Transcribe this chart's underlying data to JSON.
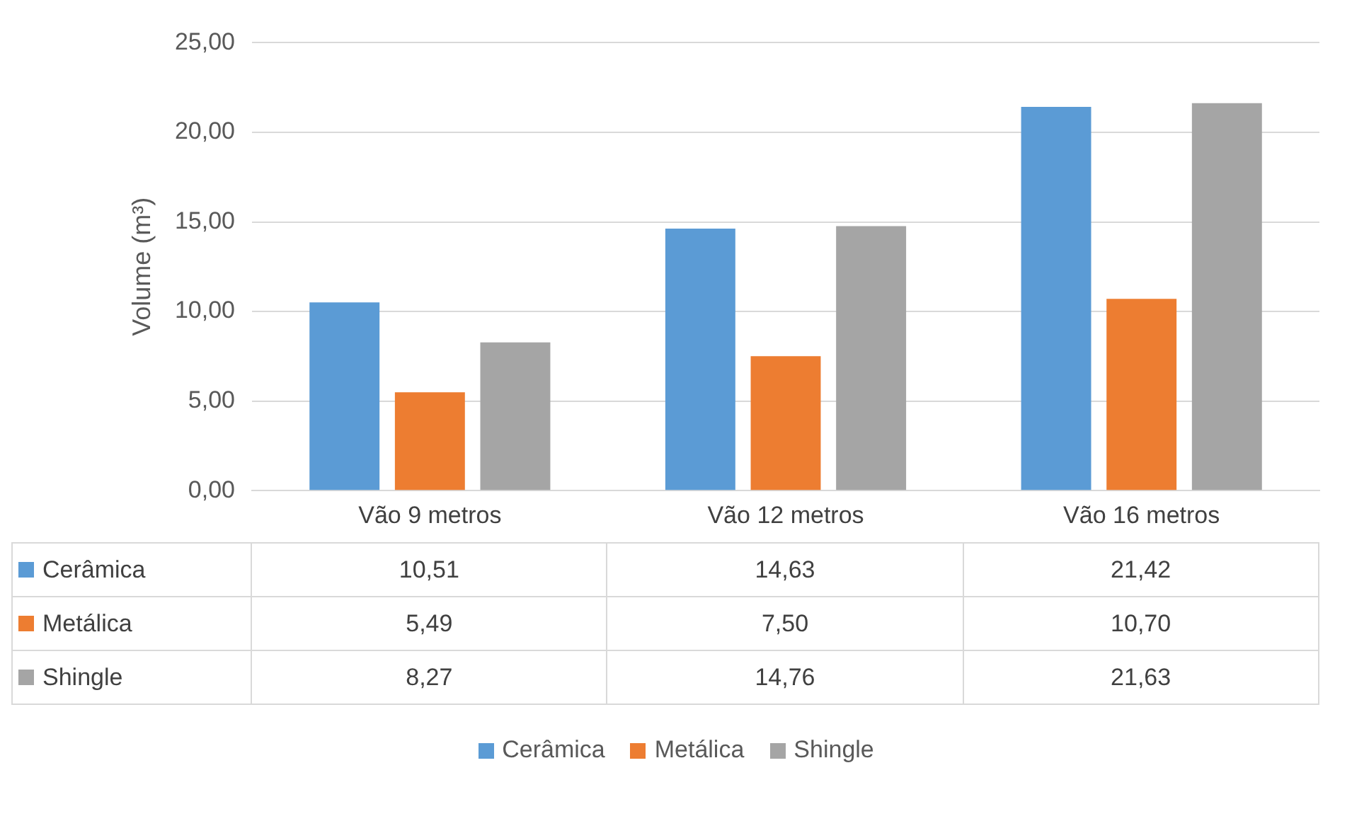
{
  "chart_data": {
    "type": "bar",
    "ylabel": "Volume (m³)",
    "categories": [
      "Vão 9 metros",
      "Vão 12 metros",
      "Vão 16 metros"
    ],
    "series": [
      {
        "name": "Cerâmica",
        "color": "#5b9bd5",
        "values": [
          10.51,
          14.63,
          21.42
        ]
      },
      {
        "name": "Metálica",
        "color": "#ed7d31",
        "values": [
          5.49,
          7.5,
          10.7
        ]
      },
      {
        "name": "Shingle",
        "color": "#a5a5a5",
        "values": [
          8.27,
          14.76,
          21.63
        ]
      }
    ],
    "value_labels": [
      [
        "10,51",
        "14,63",
        "21,42"
      ],
      [
        "5,49",
        "7,50",
        "10,70"
      ],
      [
        "8,27",
        "14,76",
        "21,63"
      ]
    ],
    "ylim": [
      0,
      25
    ],
    "yticks": [
      {
        "value": 0,
        "label": "0,00"
      },
      {
        "value": 5,
        "label": "5,00"
      },
      {
        "value": 10,
        "label": "10,00"
      },
      {
        "value": 15,
        "label": "15,00"
      },
      {
        "value": 20,
        "label": "20,00"
      },
      {
        "value": 25,
        "label": "25,00"
      }
    ],
    "grid": "y",
    "legend": "bottom"
  }
}
